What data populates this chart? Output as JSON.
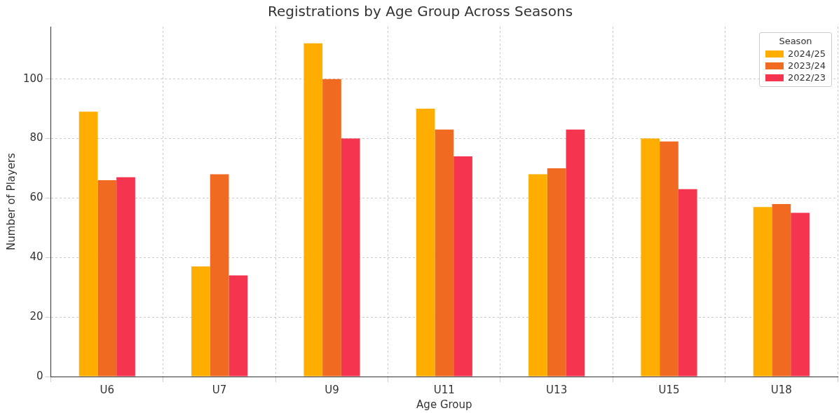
{
  "chart_data": {
    "type": "bar",
    "title": "Registrations by Age Group Across Seasons",
    "xlabel": "Age Group",
    "ylabel": "Number of Players",
    "legend_title": "Season",
    "legend": "top right",
    "grid": true,
    "categories": [
      "U6",
      "U7",
      "U9",
      "U11",
      "U13",
      "U15",
      "U18"
    ],
    "series": [
      {
        "name": "2024/25",
        "color": "#ffae00",
        "values": [
          89,
          37,
          112,
          90,
          68,
          80,
          57
        ]
      },
      {
        "name": "2023/24",
        "color": "#f06a22",
        "values": [
          66,
          68,
          100,
          83,
          70,
          79,
          58
        ]
      },
      {
        "name": "2022/23",
        "color": "#f5344f",
        "values": [
          67,
          34,
          80,
          74,
          83,
          63,
          55
        ]
      }
    ],
    "ylim": [
      0,
      117.6
    ],
    "yticks": [
      0,
      20,
      40,
      60,
      80,
      100
    ]
  }
}
